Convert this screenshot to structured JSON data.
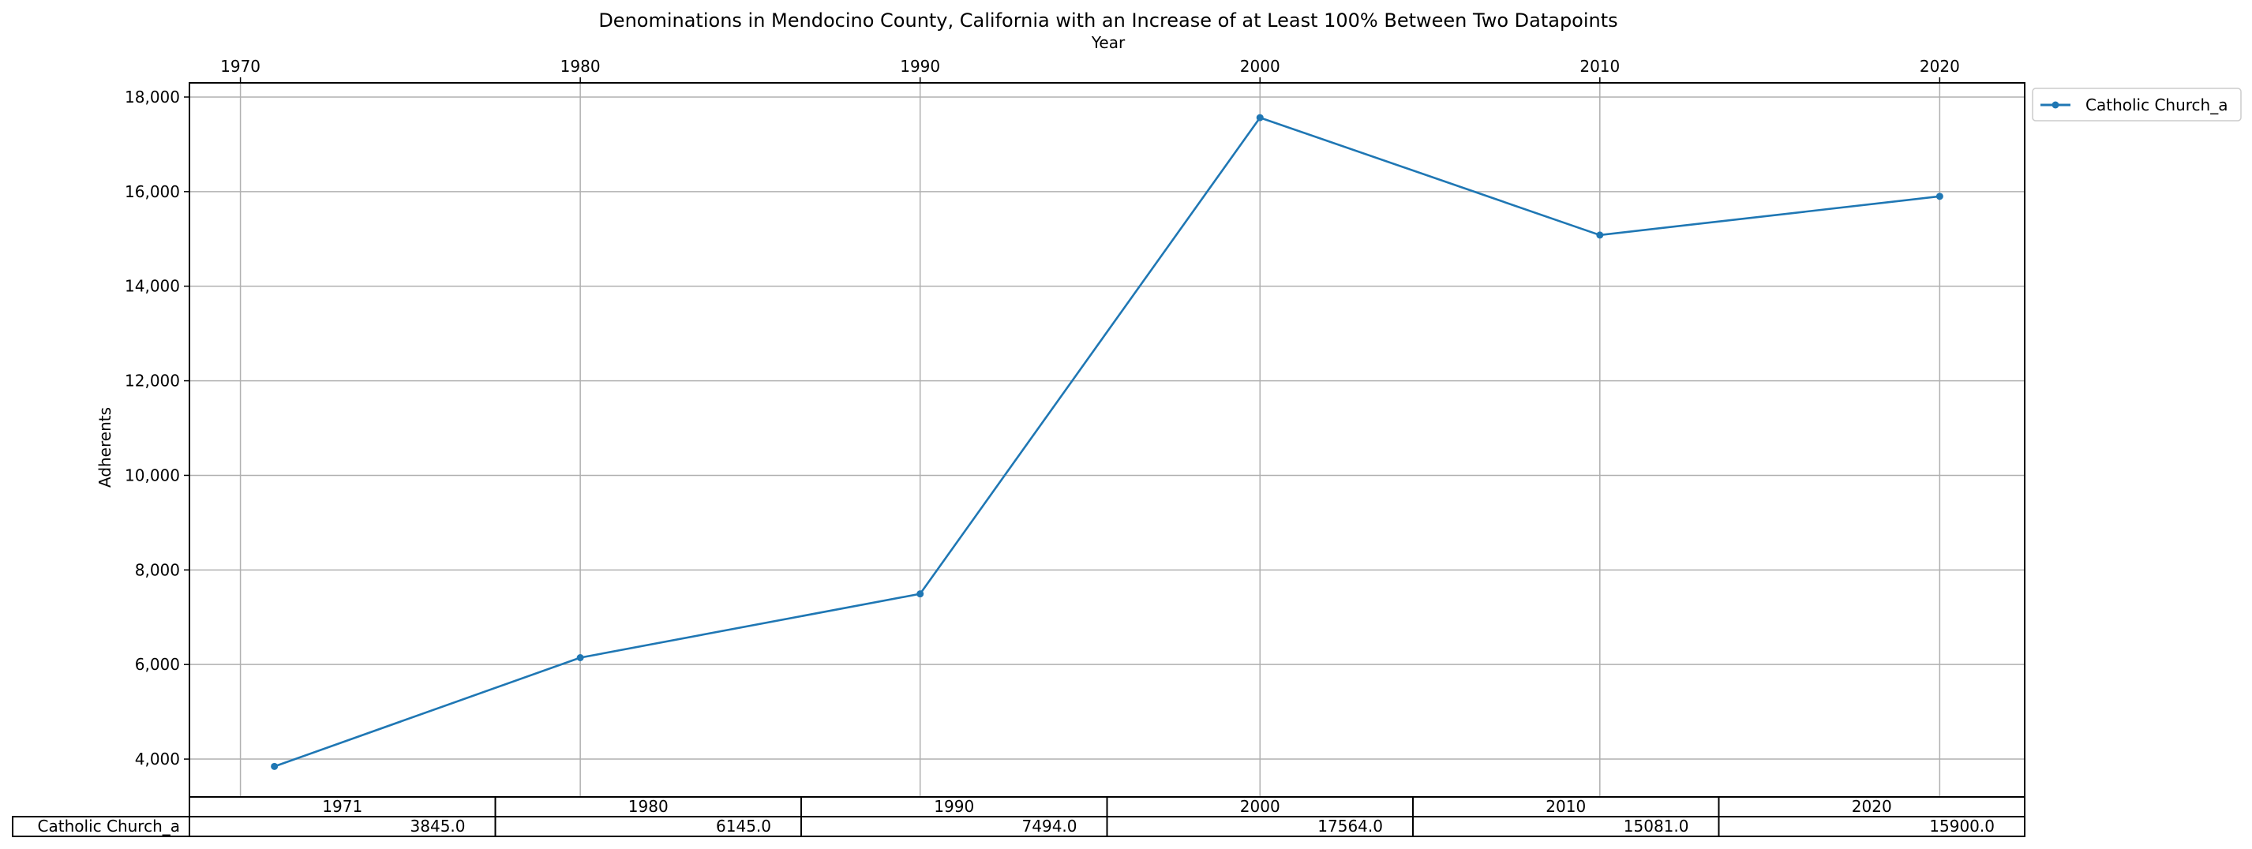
{
  "chart_data": {
    "type": "line",
    "title": "Denominations in Mendocino County, California with an Increase of at Least 100% Between Two Datapoints",
    "xlabel": "Year",
    "ylabel": "Adherents",
    "x": [
      1971,
      1980,
      1990,
      2000,
      2010,
      2020
    ],
    "x_ticks": [
      1970,
      1980,
      1990,
      2000,
      2010,
      2020
    ],
    "x_tick_labels": [
      "1970",
      "1980",
      "1990",
      "2000",
      "2010",
      "2020"
    ],
    "y_ticks": [
      4000,
      6000,
      8000,
      10000,
      12000,
      14000,
      16000,
      18000
    ],
    "y_tick_labels": [
      "4,000",
      "6,000",
      "8,000",
      "10,000",
      "12,000",
      "14,000",
      "16,000",
      "18,000"
    ],
    "xlim": [
      1968.5,
      2022.5
    ],
    "ylim": [
      3200,
      18300
    ],
    "x_axis_position": "top",
    "grid": true,
    "legend_position": "outside top-right",
    "series": [
      {
        "name": "Catholic Church_a",
        "color": "#1f77b4",
        "marker": "dot",
        "values": [
          3845,
          6145,
          7494,
          17564,
          15081,
          15900
        ]
      }
    ],
    "table": {
      "col_labels": [
        "1971",
        "1980",
        "1990",
        "2000",
        "2010",
        "2020"
      ],
      "row_label": "Catholic Church_a",
      "cells": [
        "3845.0",
        "6145.0",
        "7494.0",
        "17564.0",
        "15081.0",
        "15900.0"
      ]
    }
  }
}
